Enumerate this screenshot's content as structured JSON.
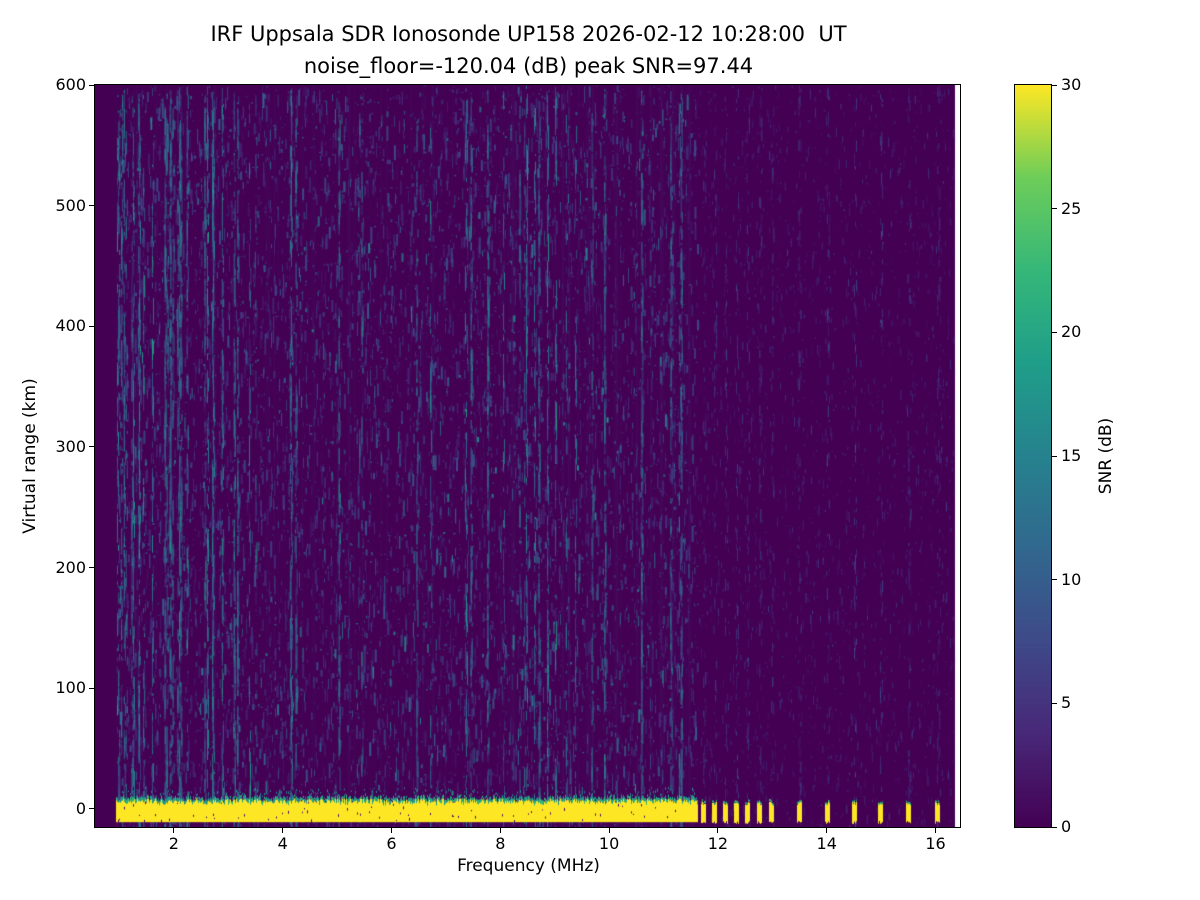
{
  "figure": {
    "title_line1": "IRF Uppsala SDR Ionosonde UP158 2026-02-12 10:28:00  UT",
    "title_line2": "noise_floor=-120.04 (dB) peak SNR=97.44"
  },
  "chart_data": {
    "type": "heatmap",
    "title": "IRF Uppsala SDR Ionosonde UP158 2026-02-12 10:28:00  UT\nnoise_floor=-120.04 (dB) peak SNR=97.44",
    "xlabel": "Frequency (MHz)",
    "ylabel": "Virtual range (km)",
    "xlim": [
      0.55,
      16.45
    ],
    "ylim": [
      -15,
      600
    ],
    "x_ticks": [
      2,
      4,
      6,
      8,
      10,
      12,
      14,
      16
    ],
    "y_ticks": [
      0,
      100,
      200,
      300,
      400,
      500,
      600
    ],
    "grid": false,
    "colorbar": {
      "label": "SNR (dB)",
      "min": 0,
      "max": 30,
      "ticks": [
        0,
        5,
        10,
        15,
        20,
        25,
        30
      ],
      "colormap": "viridis",
      "position": "right"
    },
    "noise_floor_db": -120.04,
    "peak_snr_db": 97.44,
    "features": {
      "background_snr_db": 0,
      "mesh_extent_mhz": [
        0.55,
        16.36
      ],
      "ground_return_band": {
        "virtual_range_km": 0,
        "thickness_km": 20,
        "snr_db": 30,
        "continuous_mhz": [
          0.95,
          11.62
        ],
        "pulse_mhz": [
          11.75,
          11.95,
          12.15,
          12.35,
          12.55,
          12.78,
          13.0,
          13.5,
          14.02,
          14.52,
          15.0,
          15.52,
          16.05
        ],
        "pulse_width_mhz": 0.09
      },
      "noise": {
        "seed": 1337,
        "dense_region_mhz": [
          0.95,
          11.62
        ],
        "sparse_region_mhz": [
          11.62,
          16.36
        ],
        "speckle_snr_db": [
          2,
          18
        ],
        "description": "teal vertical speckle streaks over dark purple background, denser below 11.6 MHz, faint pulse-aligned stripes above 11.6 MHz"
      }
    }
  },
  "colors": {
    "background": "#ffffff",
    "axes_color": "#000000",
    "cmap_low": "#440154",
    "cmap_mid": "#21918c",
    "cmap_high": "#fde725"
  }
}
